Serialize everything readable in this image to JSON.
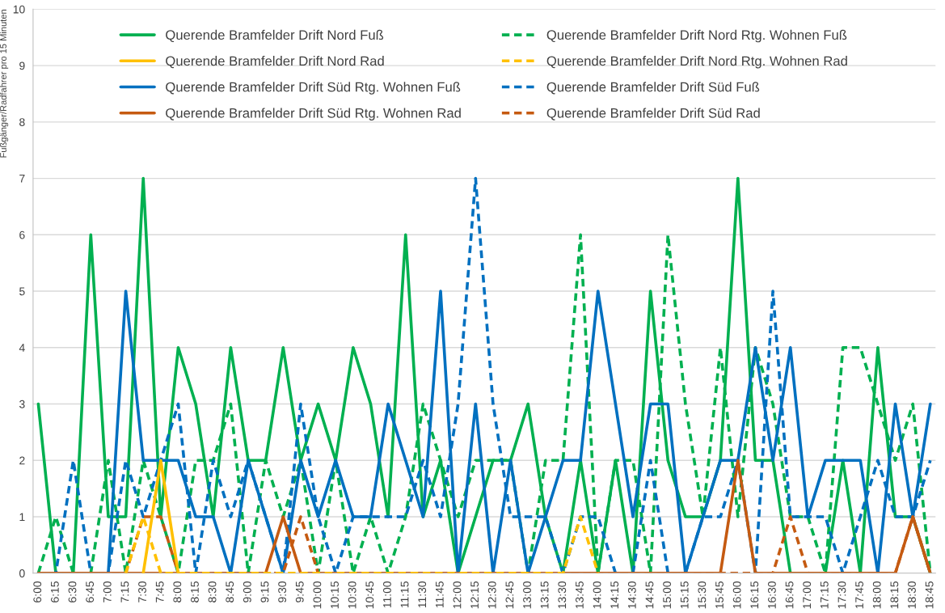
{
  "chart_data": {
    "type": "line",
    "ylabel": "Fußgänger/Radfahrer pro 15 Minuten",
    "categories": [
      "6:00",
      "6:15",
      "6:30",
      "6:45",
      "7:00",
      "7:15",
      "7:30",
      "7:45",
      "8:00",
      "8:15",
      "8:30",
      "8:45",
      "9:00",
      "9:15",
      "9:30",
      "9:45",
      "10:00",
      "10:15",
      "10:30",
      "10:45",
      "11:00",
      "11:15",
      "11:30",
      "11:45",
      "12:00",
      "12:15",
      "12:30",
      "12:45",
      "13:00",
      "13:15",
      "13:30",
      "13:45",
      "14:00",
      "14:15",
      "14:30",
      "14:45",
      "15:00",
      "15:15",
      "15:30",
      "15:45",
      "16:00",
      "16:15",
      "16:30",
      "16:45",
      "17:00",
      "17:15",
      "17:30",
      "17:45",
      "18:00",
      "18:15",
      "18:30",
      "18:45"
    ],
    "ylim": [
      0,
      10
    ],
    "yticks": [
      0,
      1,
      2,
      3,
      4,
      5,
      6,
      7,
      8,
      9,
      10
    ],
    "grid": "y",
    "legend": "top",
    "marker": "none",
    "series": [
      {
        "name": "Querende Bramfelder Drift Nord Fuß",
        "color": "#00b050",
        "line_style": "solid",
        "values": [
          3,
          0,
          0,
          6,
          1,
          1,
          7,
          1,
          4,
          3,
          1,
          4,
          2,
          2,
          4,
          2,
          3,
          2,
          4,
          3,
          1,
          6,
          1,
          2,
          0,
          1,
          2,
          2,
          3,
          1,
          0,
          2,
          0,
          2,
          0,
          5,
          2,
          1,
          1,
          2,
          7,
          2,
          2,
          0,
          0,
          0,
          2,
          0,
          4,
          1,
          1,
          0
        ]
      },
      {
        "name": "Querende Bramfelder Drift Nord Rtg. Wohnen Fuß",
        "color": "#00b050",
        "line_style": "dashed",
        "values": [
          0,
          1,
          0,
          0,
          2,
          0,
          2,
          1,
          0,
          2,
          2,
          3,
          0,
          2,
          1,
          2,
          0,
          2,
          0,
          1,
          0,
          1,
          3,
          2,
          1,
          2,
          2,
          2,
          0,
          2,
          2,
          6,
          0,
          2,
          2,
          0,
          6,
          3,
          1,
          4,
          1,
          4,
          3,
          1,
          1,
          0,
          4,
          4,
          3,
          2,
          3,
          0
        ]
      },
      {
        "name": "Querende Bramfelder Drift Nord Rad",
        "color": "#ffc000",
        "line_style": "solid",
        "values": [
          null,
          null,
          null,
          null,
          null,
          null,
          0,
          2,
          0,
          null,
          null,
          null,
          null,
          null,
          null,
          null,
          null,
          null,
          null,
          null,
          null,
          null,
          null,
          null,
          null,
          null,
          null,
          null,
          null,
          null,
          null,
          null,
          null,
          null,
          null,
          null,
          null,
          null,
          null,
          null,
          null,
          null,
          null,
          null,
          null,
          null,
          null,
          null,
          null,
          null,
          null,
          null
        ]
      },
      {
        "name": "Querende Bramfelder Drift Nord Rtg. Wohnen Rad",
        "color": "#ffc000",
        "line_style": "dashed",
        "values": [
          null,
          null,
          null,
          null,
          null,
          0,
          1,
          0,
          null,
          null,
          null,
          null,
          null,
          null,
          null,
          null,
          null,
          null,
          null,
          null,
          null,
          null,
          null,
          null,
          null,
          null,
          null,
          null,
          null,
          null,
          0,
          1,
          0,
          null,
          null,
          null,
          null,
          null,
          null,
          null,
          null,
          null,
          null,
          null,
          null,
          null,
          null,
          null,
          null,
          null,
          null,
          null
        ]
      },
      {
        "name": "Querende Bramfelder Drift Süd Rtg. Wohnen Fuß",
        "color": "#0070c0",
        "line_style": "solid",
        "values": [
          0,
          0,
          0,
          0,
          0,
          5,
          2,
          2,
          2,
          1,
          1,
          0,
          2,
          1,
          0,
          2,
          1,
          2,
          1,
          1,
          3,
          2,
          1,
          5,
          0,
          3,
          0,
          2,
          0,
          1,
          2,
          2,
          5,
          3,
          1,
          3,
          3,
          0,
          1,
          2,
          2,
          4,
          2,
          4,
          1,
          2,
          2,
          2,
          0,
          3,
          1,
          3
        ]
      },
      {
        "name": "Querende Bramfelder Drift Süd Fuß",
        "color": "#0070c0",
        "line_style": "dashed",
        "values": [
          0,
          0,
          2,
          0,
          0,
          2,
          1,
          2,
          3,
          0,
          2,
          1,
          2,
          1,
          0,
          3,
          1,
          0,
          1,
          1,
          1,
          1,
          2,
          1,
          3,
          7,
          3,
          1,
          1,
          1,
          0,
          1,
          1,
          0,
          0,
          2,
          0,
          0,
          1,
          1,
          2,
          0,
          5,
          1,
          1,
          1,
          0,
          1,
          2,
          1,
          1,
          2
        ]
      },
      {
        "name": "Querende Bramfelder Drift Süd Rtg. Wohnen Rad",
        "color": "#c55a11",
        "line_style": "solid",
        "values": [
          0,
          0,
          0,
          0,
          0,
          0,
          0,
          0,
          0,
          0,
          0,
          0,
          0,
          0,
          1,
          0,
          0,
          0,
          0,
          0,
          0,
          0,
          0,
          0,
          0,
          0,
          0,
          0,
          0,
          0,
          0,
          0,
          0,
          0,
          0,
          0,
          0,
          0,
          0,
          0,
          2,
          0,
          0,
          0,
          0,
          0,
          0,
          0,
          0,
          0,
          1,
          0
        ]
      },
      {
        "name": "Querende Bramfelder Drift Süd Rad",
        "color": "#c55a11",
        "line_style": "dashed",
        "values": [
          0,
          0,
          0,
          0,
          0,
          0,
          1,
          1,
          0,
          0,
          0,
          0,
          0,
          0,
          0,
          1,
          0,
          0,
          0,
          0,
          0,
          0,
          0,
          0,
          0,
          0,
          0,
          0,
          0,
          0,
          0,
          0,
          0,
          0,
          0,
          0,
          0,
          0,
          0,
          0,
          0,
          0,
          0,
          1,
          0,
          0,
          0,
          0,
          0,
          0,
          1,
          0
        ]
      }
    ]
  }
}
